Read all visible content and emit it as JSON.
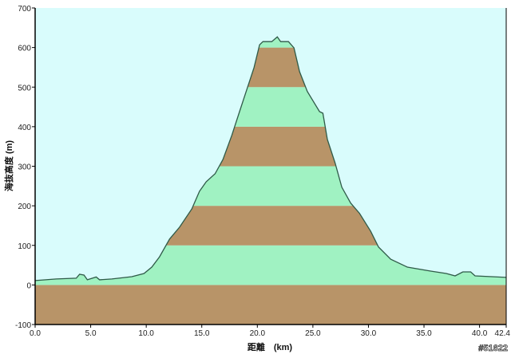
{
  "chart_data": {
    "type": "area",
    "title": "",
    "xlabel": "距離　(km)",
    "ylabel": "海抜高度 (m)",
    "xlim": [
      0,
      42.4
    ],
    "ylim": [
      -100,
      700
    ],
    "x_ticks": [
      "0.0",
      "5.0",
      "10.0",
      "15.0",
      "20.0",
      "25.0",
      "30.0",
      "35.0",
      "40.0",
      "42.4"
    ],
    "x_tick_values": [
      0,
      5,
      10,
      15,
      20,
      25,
      30,
      35,
      40,
      42.4
    ],
    "y_ticks": [
      "-100",
      "0",
      "100",
      "200",
      "300",
      "400",
      "500",
      "600",
      "700"
    ],
    "y_tick_values": [
      -100,
      0,
      100,
      200,
      300,
      400,
      500,
      600,
      700
    ],
    "grid": false,
    "band_interval_m": 100,
    "colors": {
      "sky": "#d9fcfc",
      "band_even": "#a0f2c2",
      "band_odd": "#b89468",
      "line": "#2f5a48"
    },
    "x": [
      0,
      1.9,
      3.7,
      4.0,
      4.4,
      4.7,
      5.5,
      5.8,
      6.9,
      8.7,
      9.8,
      10.5,
      11.2,
      12.1,
      13.0,
      14.1,
      14.8,
      15.4,
      16.2,
      16.9,
      17.7,
      18.4,
      19.1,
      19.7,
      20.2,
      20.5,
      21.3,
      21.8,
      22.1,
      22.8,
      23.3,
      23.8,
      24.5,
      25.6,
      25.9,
      26.3,
      27.0,
      27.6,
      28.4,
      29.2,
      30.2,
      30.9,
      32.0,
      33.5,
      35.6,
      37.0,
      37.8,
      38.5,
      39.2,
      39.6,
      42.4
    ],
    "y": [
      11,
      15,
      17,
      27,
      25,
      13,
      20,
      13,
      15,
      21,
      29,
      45,
      71,
      116,
      146,
      192,
      237,
      261,
      281,
      317,
      378,
      438,
      498,
      549,
      607,
      615,
      615,
      627,
      615,
      615,
      599,
      539,
      489,
      438,
      434,
      368,
      308,
      247,
      207,
      181,
      136,
      96,
      65,
      45,
      35,
      29,
      23,
      33,
      33,
      23,
      19
    ]
  },
  "footer": {
    "id_label": "#51622"
  }
}
